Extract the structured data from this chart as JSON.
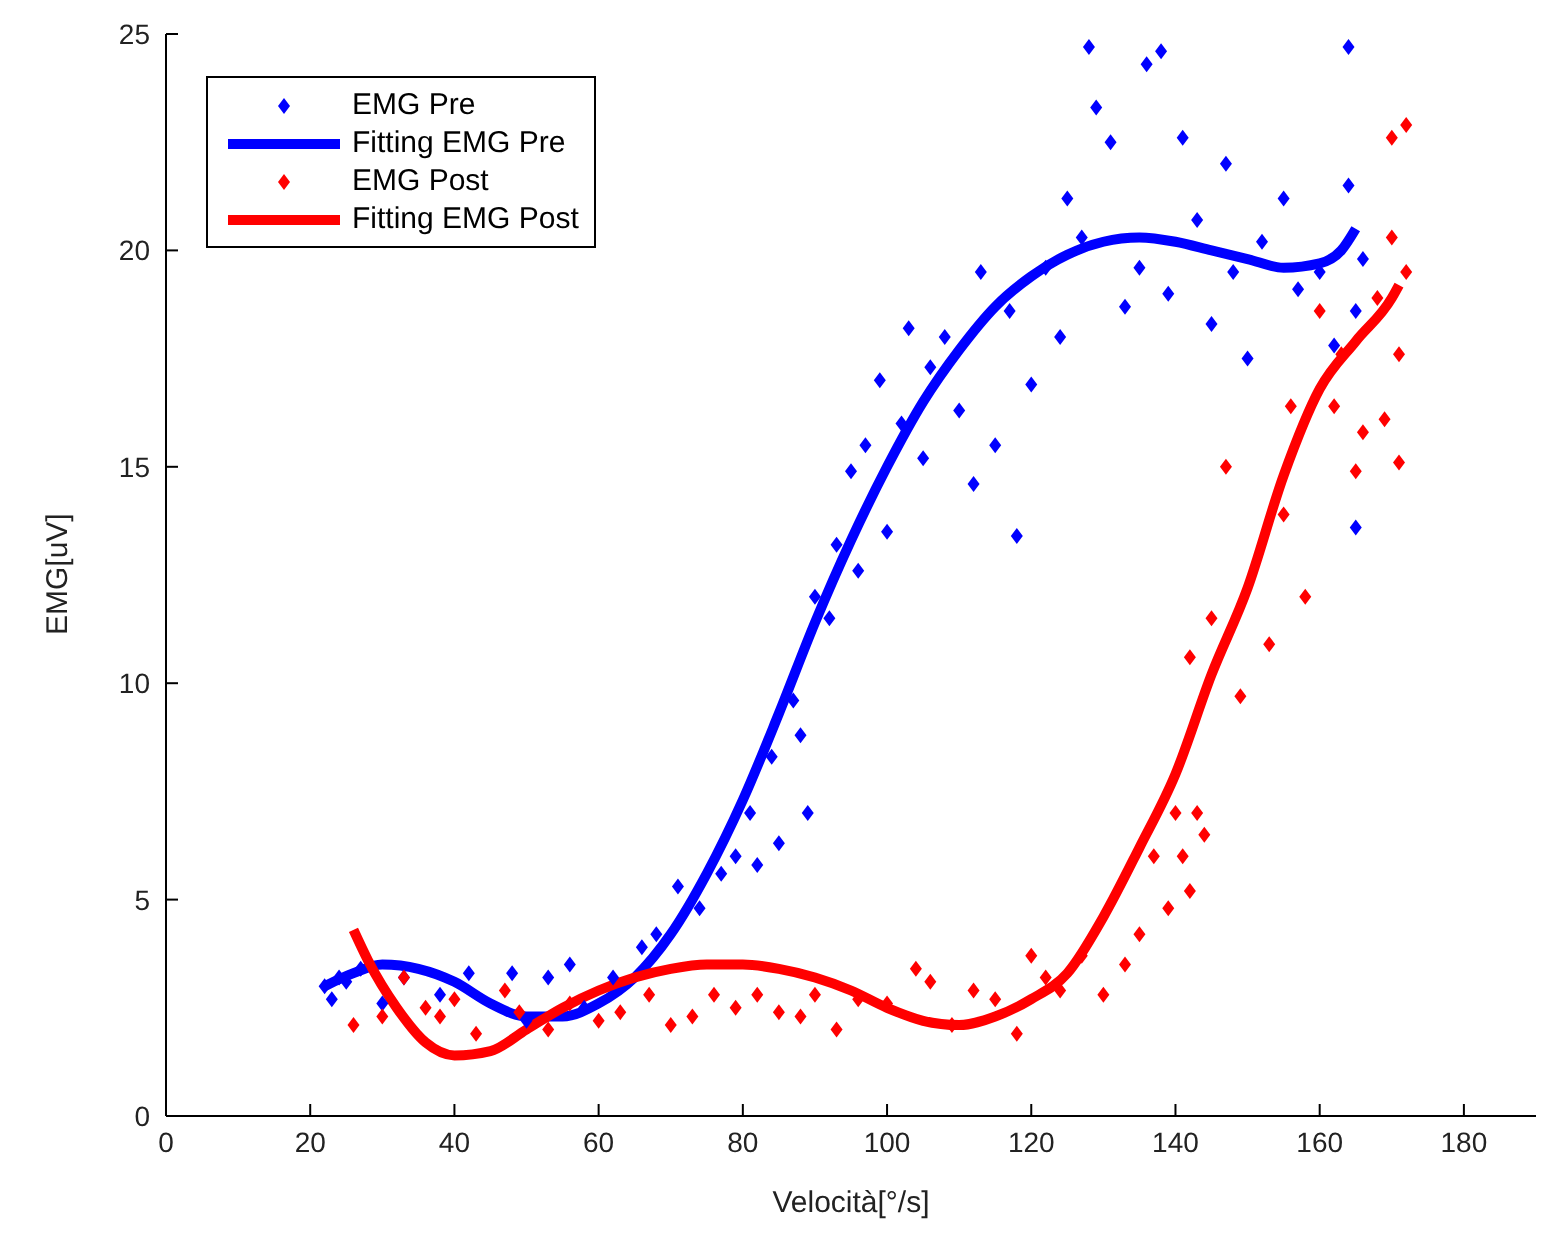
{
  "chart_data": {
    "type": "scatter",
    "xlabel": "Velocità[°/s]",
    "ylabel": "EMG[uV]",
    "xlim": [
      0,
      190
    ],
    "xticks": [
      0,
      20,
      40,
      60,
      80,
      100,
      120,
      140,
      160,
      180
    ],
    "ylim": [
      0,
      25
    ],
    "yticks": [
      0,
      5,
      10,
      15,
      20,
      25
    ],
    "grid": false,
    "legend": "top left",
    "line_style": "solid",
    "series": [
      {
        "name": "EMG Pre",
        "marker": "diamond",
        "color": "#0000ff",
        "x": [
          22,
          23,
          24,
          25,
          27,
          30,
          33,
          38,
          42,
          48,
          50,
          53,
          56,
          58,
          62,
          66,
          68,
          71,
          74,
          77,
          79,
          81,
          82,
          84,
          85,
          87,
          88,
          89,
          90,
          92,
          93,
          95,
          96,
          97,
          99,
          100,
          102,
          103,
          105,
          106,
          108,
          110,
          112,
          113,
          115,
          117,
          118,
          120,
          122,
          124,
          125,
          127,
          128,
          129,
          131,
          133,
          135,
          136,
          138,
          139,
          141,
          143,
          145,
          147,
          148,
          150,
          152,
          155,
          157,
          160,
          162,
          164,
          164,
          165,
          165,
          166
        ],
        "values": [
          3.0,
          2.7,
          3.2,
          3.1,
          3.4,
          2.6,
          3.2,
          2.8,
          3.3,
          3.3,
          2.2,
          3.2,
          3.5,
          2.5,
          3.2,
          3.9,
          4.2,
          5.3,
          4.8,
          5.6,
          6.0,
          7.0,
          5.8,
          8.3,
          6.3,
          9.6,
          8.8,
          7.0,
          12.0,
          11.5,
          13.2,
          14.9,
          12.6,
          15.5,
          17.0,
          13.5,
          16.0,
          18.2,
          15.2,
          17.3,
          18.0,
          16.3,
          14.6,
          19.5,
          15.5,
          18.6,
          13.4,
          16.9,
          19.6,
          18.0,
          21.2,
          20.3,
          24.7,
          23.3,
          22.5,
          18.7,
          19.6,
          24.3,
          24.6,
          19.0,
          22.6,
          20.7,
          18.3,
          22.0,
          19.5,
          17.5,
          20.2,
          21.2,
          19.1,
          19.5,
          17.8,
          24.7,
          21.5,
          18.6,
          13.6,
          19.8
        ]
      },
      {
        "name": "Fitting EMG Pre",
        "type": "line",
        "marker": "none",
        "color": "#0000ff",
        "x": [
          22,
          26,
          30,
          35,
          40,
          45,
          50,
          55,
          60,
          65,
          70,
          75,
          80,
          85,
          90,
          95,
          100,
          105,
          110,
          115,
          120,
          125,
          130,
          135,
          140,
          145,
          150,
          155,
          160,
          163,
          165
        ],
        "values": [
          3.0,
          3.3,
          3.5,
          3.4,
          3.1,
          2.6,
          2.3,
          2.3,
          2.6,
          3.2,
          4.2,
          5.6,
          7.3,
          9.3,
          11.4,
          13.3,
          15.0,
          16.5,
          17.7,
          18.7,
          19.4,
          19.9,
          20.2,
          20.3,
          20.2,
          20.0,
          19.8,
          19.6,
          19.7,
          20.0,
          20.5
        ]
      },
      {
        "name": "EMG Post",
        "marker": "diamond",
        "color": "#ff0000",
        "x": [
          26,
          30,
          33,
          36,
          38,
          40,
          43,
          47,
          49,
          53,
          56,
          60,
          63,
          67,
          70,
          73,
          76,
          79,
          82,
          85,
          88,
          90,
          93,
          96,
          100,
          104,
          106,
          109,
          112,
          115,
          118,
          120,
          122,
          124,
          127,
          130,
          133,
          135,
          137,
          139,
          140,
          141,
          142,
          142,
          143,
          144,
          145,
          147,
          149,
          153,
          155,
          156,
          158,
          160,
          162,
          163,
          165,
          166,
          168,
          169,
          170,
          170,
          171,
          171,
          172,
          172
        ],
        "values": [
          2.1,
          2.3,
          3.2,
          2.5,
          2.3,
          2.7,
          1.9,
          2.9,
          2.4,
          2.0,
          2.6,
          2.2,
          2.4,
          2.8,
          2.1,
          2.3,
          2.8,
          2.5,
          2.8,
          2.4,
          2.3,
          2.8,
          2.0,
          2.7,
          2.6,
          3.4,
          3.1,
          2.1,
          2.9,
          2.7,
          1.9,
          3.7,
          3.2,
          2.9,
          3.7,
          2.8,
          3.5,
          4.2,
          6.0,
          4.8,
          7.0,
          6.0,
          5.2,
          10.6,
          7.0,
          6.5,
          11.5,
          15.0,
          9.7,
          10.9,
          13.9,
          16.4,
          12.0,
          18.6,
          16.4,
          17.6,
          14.9,
          15.8,
          18.9,
          16.1,
          22.6,
          20.3,
          17.6,
          15.1,
          22.9,
          19.5
        ]
      },
      {
        "name": "Fitting EMG Post",
        "type": "line",
        "marker": "none",
        "color": "#ff0000",
        "x": [
          26,
          28,
          32,
          36,
          40,
          45,
          50,
          55,
          60,
          65,
          70,
          75,
          80,
          85,
          90,
          95,
          100,
          105,
          110,
          115,
          120,
          125,
          130,
          135,
          140,
          145,
          150,
          155,
          160,
          165,
          170,
          171
        ],
        "values": [
          4.3,
          3.6,
          2.5,
          1.7,
          1.4,
          1.5,
          2.0,
          2.5,
          2.9,
          3.2,
          3.4,
          3.5,
          3.5,
          3.4,
          3.2,
          2.9,
          2.5,
          2.2,
          2.1,
          2.3,
          2.7,
          3.3,
          4.6,
          6.2,
          7.9,
          10.2,
          12.2,
          14.8,
          16.8,
          17.9,
          18.9,
          19.2
        ]
      }
    ]
  }
}
